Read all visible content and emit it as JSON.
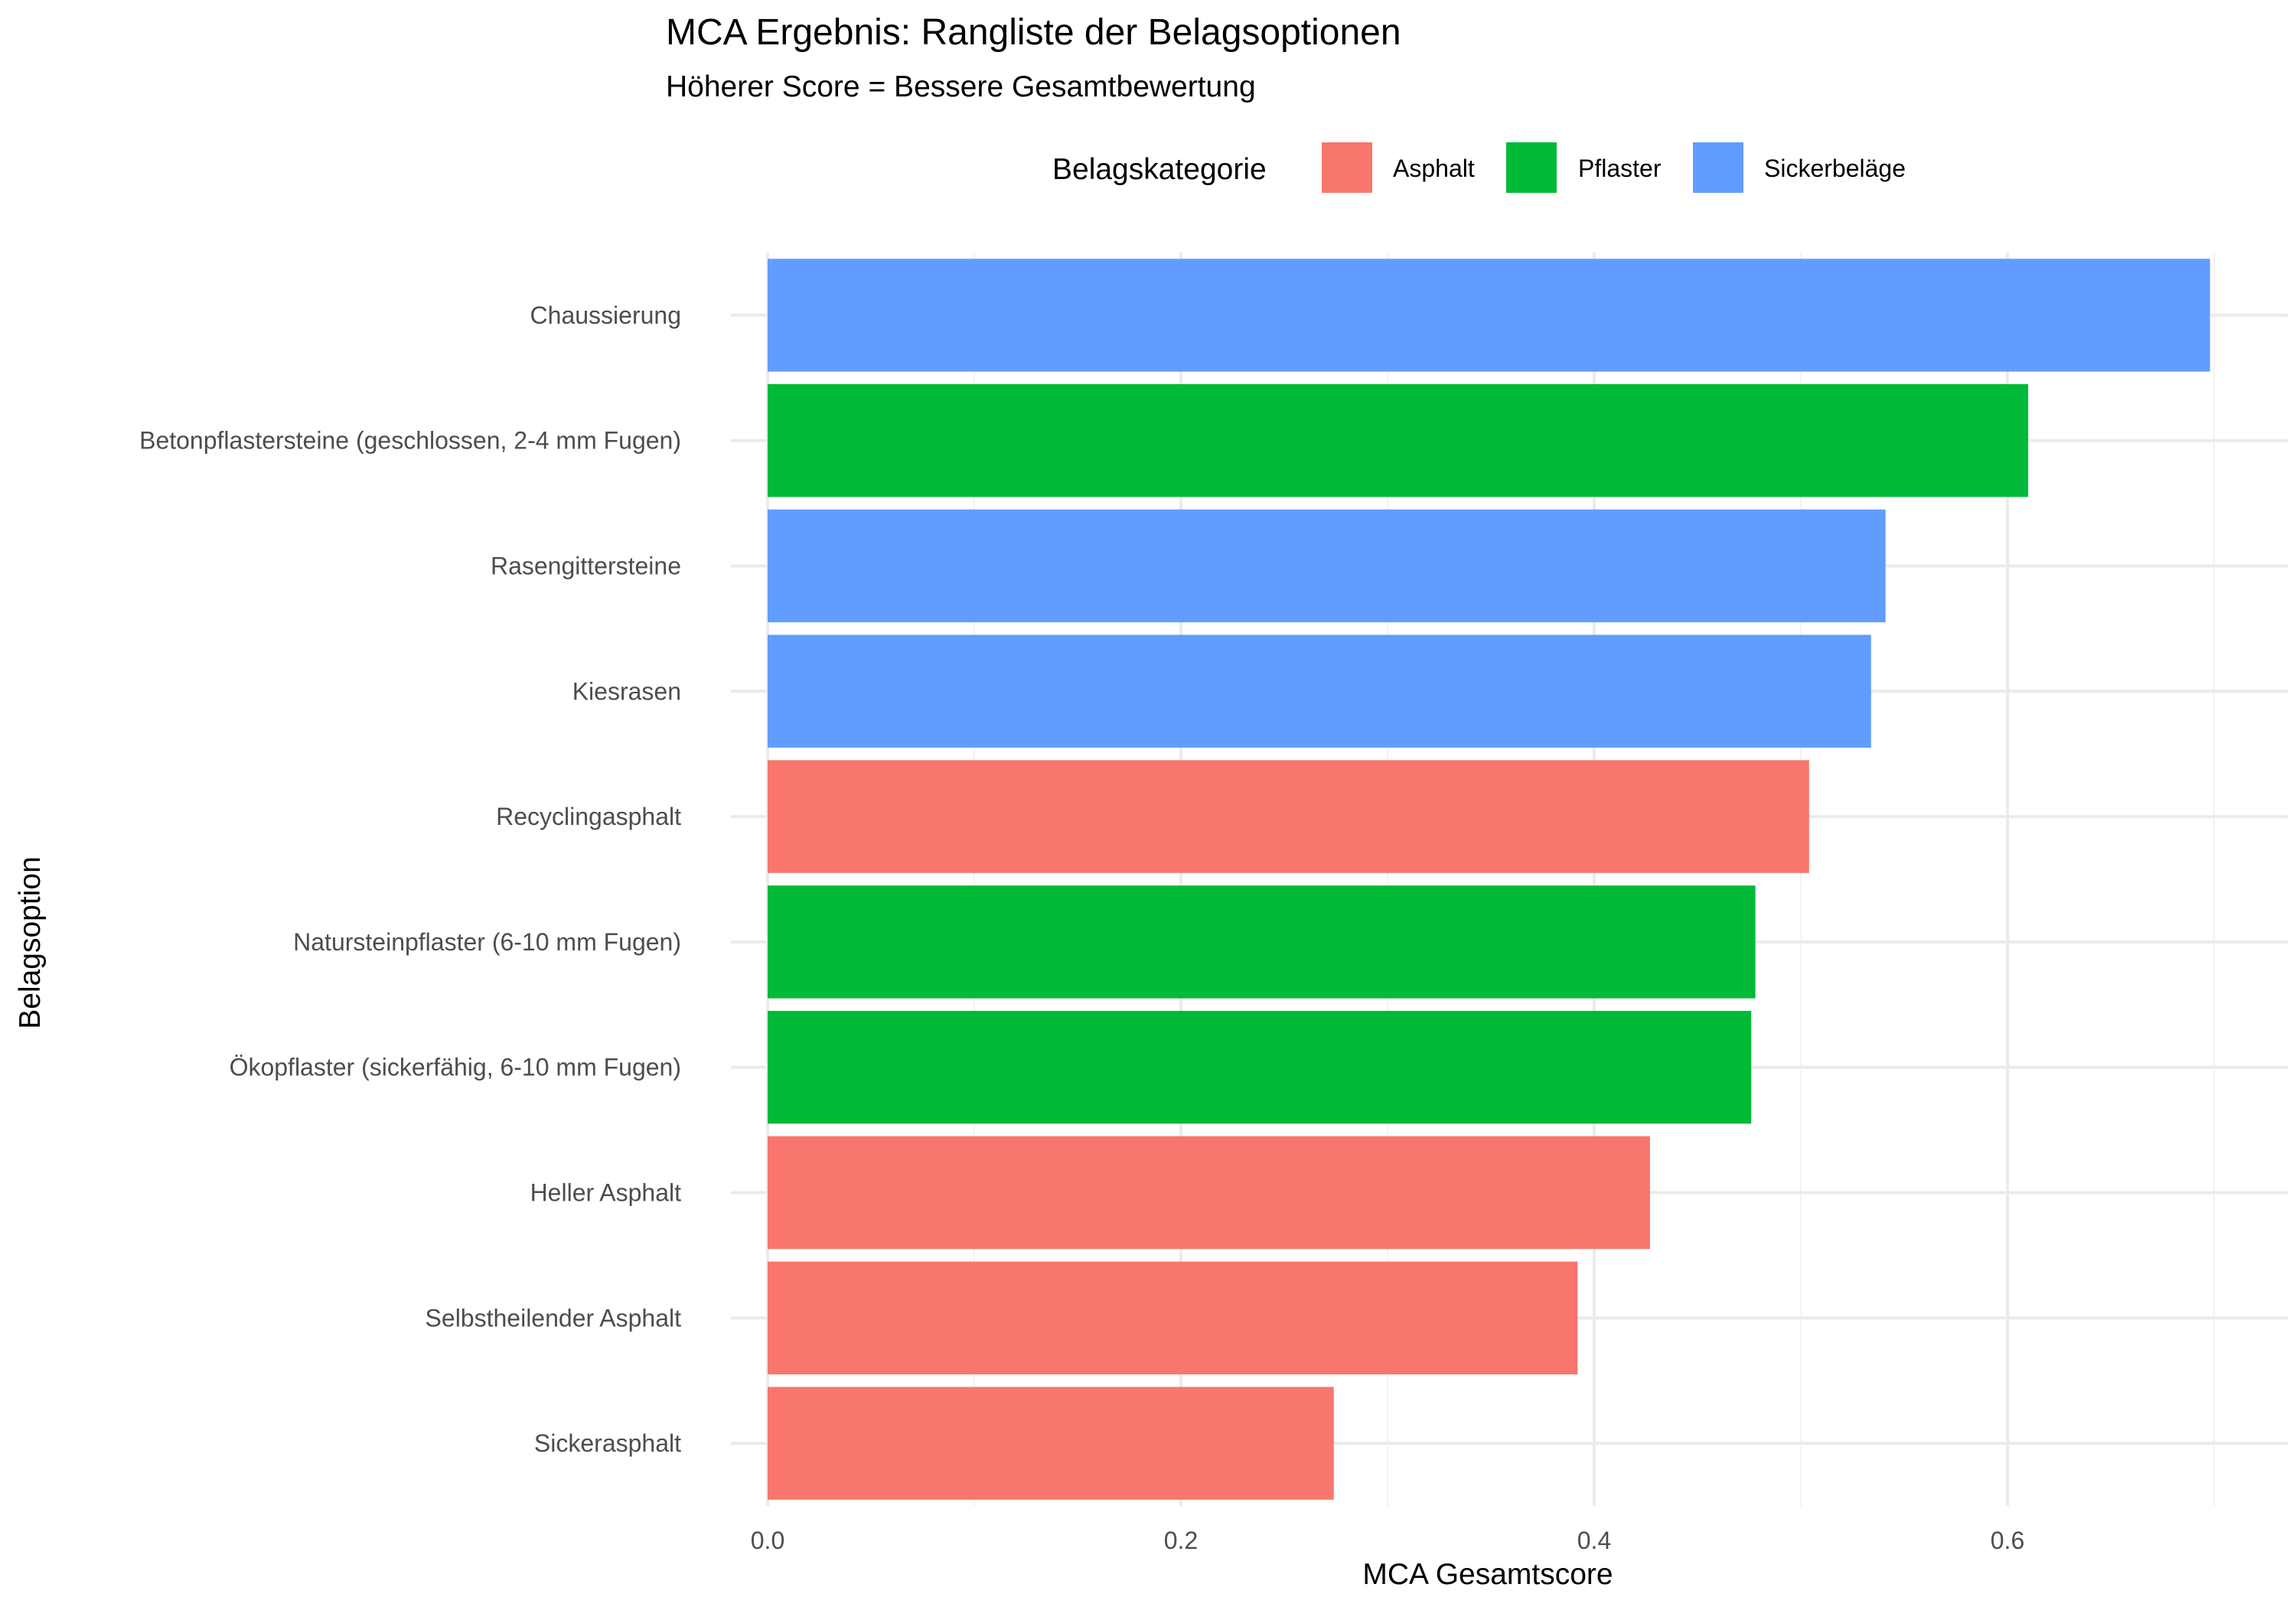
{
  "chart_data": {
    "type": "bar",
    "orientation": "horizontal",
    "title": "MCA Ergebnis: Rangliste der Belagsoptionen",
    "subtitle": "Höherer Score = Bessere Gesamtbewertung",
    "xlabel": "MCA Gesamtscore",
    "ylabel": "Belagsoption",
    "xlim": [
      0,
      0.72
    ],
    "x_ticks": [
      "0.0",
      "0.2",
      "0.4",
      "0.6"
    ],
    "grid": true,
    "legend": {
      "title": "Belagskategorie",
      "placement": "top",
      "entries": [
        {
          "name": "Asphalt",
          "color": "#F8766D"
        },
        {
          "name": "Pflaster",
          "color": "#00BA38"
        },
        {
          "name": "Sickerbeläge",
          "color": "#619CFF"
        }
      ]
    },
    "categories": [
      "Chaussierung",
      "Betonpflastersteine (geschlossen, 2-4 mm Fugen)",
      "Rasengittersteine",
      "Kiesrasen",
      "Recyclingasphalt",
      "Natursteinpflaster (6-10 mm Fugen)",
      "Ökopflaster (sickerfähig, 6-10 mm Fugen)",
      "Heller Asphalt",
      "Selbstheilender Asphalt",
      "Sickerasphalt"
    ],
    "values": [
      0.698,
      0.61,
      0.541,
      0.534,
      0.504,
      0.478,
      0.476,
      0.427,
      0.392,
      0.274
    ],
    "groups": [
      "Sickerbeläge",
      "Pflaster",
      "Sickerbeläge",
      "Sickerbeläge",
      "Asphalt",
      "Pflaster",
      "Pflaster",
      "Asphalt",
      "Asphalt",
      "Asphalt"
    ]
  }
}
